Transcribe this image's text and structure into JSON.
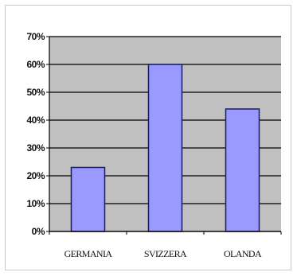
{
  "chart_data": {
    "type": "bar",
    "categories": [
      "GERMANIA",
      "SVIZZERA",
      "OLANDA"
    ],
    "values": [
      23,
      60,
      44
    ],
    "ylim": [
      0,
      70
    ],
    "ytick_step": 10,
    "ytick_labels": [
      "0%",
      "10%",
      "20%",
      "30%",
      "40%",
      "50%",
      "60%",
      "70%"
    ],
    "title": "",
    "xlabel": "",
    "ylabel": "",
    "grid": true,
    "legend": "none",
    "colors": {
      "plot_area": "#c0c0c0",
      "bar_fill": "#9999ff",
      "bar_stroke": "#1a1a66",
      "grid": "#000000"
    }
  }
}
